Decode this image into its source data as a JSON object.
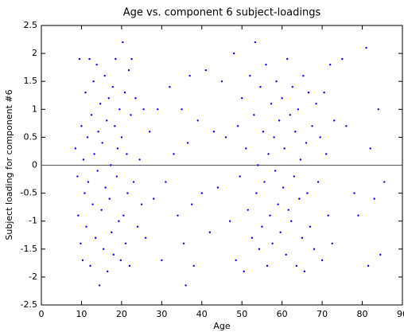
{
  "chart_data": {
    "type": "scatter",
    "title": "Age vs. component 6 subject-loadings",
    "x_label": "Age",
    "y_label": "Subject loading for component #6",
    "xlim": [
      0,
      90
    ],
    "xticks": [
      0,
      10,
      20,
      30,
      40,
      50,
      60,
      70,
      80,
      90
    ],
    "ylim": [
      -2.5,
      2.5
    ],
    "yticks": [
      -2.5,
      -2,
      -1.5,
      -1,
      -0.5,
      0,
      0.5,
      1,
      1.5,
      2,
      2.5
    ],
    "reference_line": 0,
    "color": "#0000ff",
    "x": [
      8.5,
      9,
      9.2,
      9.5,
      9.8,
      10,
      10.3,
      10.5,
      10.8,
      11,
      11.2,
      11.5,
      11.7,
      12,
      12.2,
      12.5,
      12.8,
      13,
      13.2,
      13.5,
      13.8,
      14,
      14.2,
      14.5,
      14.7,
      15,
      15.2,
      15.5,
      15.8,
      16,
      16.3,
      16.5,
      16.8,
      17,
      17.3,
      17.5,
      17.8,
      18,
      18.3,
      18.5,
      18.8,
      19,
      19.3,
      19.5,
      19.8,
      20,
      20.3,
      20.5,
      20.8,
      21,
      21.3,
      21.5,
      21.8,
      22,
      22.3,
      22.5,
      23,
      23.5,
      24,
      24.5,
      25,
      25.5,
      26,
      27,
      28,
      29,
      30,
      31,
      32,
      33,
      34,
      35,
      35.5,
      36,
      36.5,
      37,
      37.5,
      38,
      39,
      40,
      41,
      42,
      43,
      44,
      45,
      46,
      47,
      48,
      48.5,
      49,
      49.5,
      50,
      50.5,
      51,
      51.5,
      52,
      52.5,
      53,
      53.3,
      53.6,
      54,
      54.3,
      54.6,
      55,
      55.3,
      55.6,
      56,
      56.3,
      56.6,
      57,
      57.3,
      57.6,
      58,
      58.3,
      58.6,
      59,
      59.3,
      59.6,
      60,
      60.3,
      60.6,
      61,
      61.3,
      61.6,
      62,
      62.3,
      62.6,
      63,
      63.3,
      63.6,
      64,
      64.3,
      64.6,
      65,
      65.3,
      65.6,
      66,
      66.3,
      66.6,
      67,
      67.5,
      68,
      68.5,
      69,
      69.5,
      70,
      70.5,
      71,
      71.5,
      72,
      72.5,
      73,
      75,
      76,
      78,
      79,
      81,
      81.5,
      82,
      83,
      84,
      84.5,
      85.5
    ],
    "values": [
      0.3,
      -0.2,
      -0.9,
      1.9,
      -1.4,
      0.7,
      -1.7,
      0.1,
      -0.5,
      1.3,
      -1.1,
      0.5,
      -0.3,
      1.9,
      -1.8,
      0.9,
      -0.7,
      1.5,
      0.2,
      -1.3,
      1.8,
      -0.1,
      0.6,
      -2.15,
      1.1,
      -0.8,
      0.4,
      -1.5,
      1.6,
      -0.4,
      0.8,
      -1.9,
      1.2,
      -0.6,
      0,
      -1.2,
      1.4,
      -1.6,
      0.7,
      1.9,
      -0.2,
      0.3,
      -1,
      1,
      -1.7,
      0.5,
      2.2,
      -0.9,
      1.3,
      -1.4,
      0.2,
      -0.5,
      1.7,
      -1.8,
      0.9,
      1.9,
      -0.3,
      1.2,
      -1.1,
      0.1,
      -0.7,
      1,
      -1.3,
      0.6,
      -0.6,
      1,
      -1.7,
      -0.3,
      1.4,
      0.2,
      -0.9,
      1,
      -1.4,
      -2.15,
      0.4,
      1.6,
      -0.7,
      -1.8,
      0.8,
      -0.5,
      1.7,
      -1.2,
      0.6,
      -0.4,
      1.5,
      0.5,
      -1,
      2,
      -1.7,
      0.7,
      -0.2,
      1.2,
      -1.9,
      0.3,
      -0.8,
      1.6,
      -1.3,
      0.9,
      2.2,
      -0.5,
      0,
      -1.5,
      1.4,
      -1.1,
      0.6,
      -0.3,
      1.8,
      -1.8,
      0.2,
      -0.9,
      1.1,
      -1.4,
      0.5,
      -0.1,
      1.5,
      -0.7,
      0.8,
      -1.2,
      1.2,
      -0.4,
      0.3,
      -1.6,
      1.9,
      -0.8,
      0.9,
      -1,
      1.4,
      -0.2,
      0.6,
      -1.8,
      1,
      -0.6,
      0.1,
      -1.3,
      1.6,
      -1.9,
      0.4,
      -0.5,
      1.3,
      -1.1,
      0.7,
      -1.5,
      1.1,
      -0.3,
      0.5,
      -1.7,
      1.3,
      0.2,
      -0.9,
      1.8,
      -1.4,
      0.8,
      1.9,
      0.7,
      -0.5,
      -0.9,
      2.1,
      -1.8,
      0.3,
      -0.6,
      1,
      -1.6,
      -0.3
    ]
  }
}
